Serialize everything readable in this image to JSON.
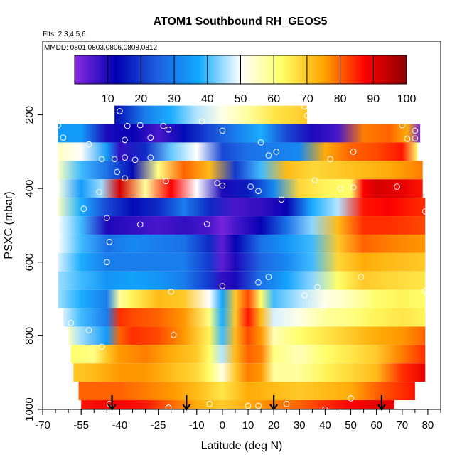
{
  "chart_data": {
    "type": "heatmap",
    "title": "ATOM1 Southbound RH_GEOS5",
    "subtitle": "Flts: 2,3,4,5,6",
    "annotation": "MMDD: 0801,0803,0806,0808,0812",
    "xlabel": "Latitude (deg N)",
    "ylabel": "PSXC (mbar)",
    "xlim": [
      -70,
      85
    ],
    "ylim": [
      1000,
      0
    ],
    "x_ticks": [
      -70,
      -55,
      -40,
      -25,
      -10,
      0,
      10,
      20,
      30,
      40,
      50,
      60,
      70,
      80
    ],
    "x_tick_labels": [
      "-70",
      "-55",
      "-40",
      "-25",
      "-10",
      "0",
      "10",
      "20",
      "30",
      "40",
      "50",
      "60",
      "70",
      "80"
    ],
    "y_ticks": [
      200,
      400,
      600,
      800,
      1000
    ],
    "y_tick_labels": [
      "200",
      "400",
      "600",
      "800",
      "1000"
    ],
    "colorbar": {
      "range": [
        0,
        100
      ],
      "ticks": [
        10,
        20,
        30,
        40,
        50,
        60,
        70,
        80,
        90,
        100
      ],
      "tick_labels": [
        "10",
        "20",
        "30",
        "40",
        "50",
        "60",
        "70",
        "80",
        "90",
        "100"
      ],
      "stops": [
        "#8a2be2",
        "#0000b0",
        "#1f5fe0",
        "#10aaff",
        "#ffffff",
        "#ffff66",
        "#ffa500",
        "#ff0000",
        "#8b0000"
      ]
    },
    "band_edges": [
      175,
      225,
      275,
      325,
      375,
      425,
      475,
      525,
      575,
      625,
      675,
      725,
      775,
      825,
      875,
      925,
      975,
      1000
    ],
    "bands": [
      {
        "p": 200,
        "x0": -42,
        "x1": 33,
        "lat": [
          -42,
          -30,
          -20,
          -10,
          0,
          10,
          20,
          33
        ],
        "rh": [
          14,
          30,
          38,
          46,
          52,
          58,
          66,
          70
        ]
      },
      {
        "p": 250,
        "x0": -64,
        "x1": 77,
        "lat": [
          -64,
          -55,
          -45,
          -35,
          -25,
          -15,
          -5,
          5,
          15,
          25,
          35,
          45,
          55,
          65,
          72,
          77
        ],
        "rh": [
          35,
          35,
          10,
          12,
          6,
          14,
          22,
          30,
          38,
          22,
          10,
          6,
          78,
          80,
          74,
          2
        ]
      },
      {
        "p": 300,
        "x0": -64,
        "x1": 76,
        "lat": [
          -64,
          -55,
          -45,
          -40,
          -30,
          -20,
          -10,
          0,
          10,
          20,
          30,
          40,
          50,
          60,
          70,
          76
        ],
        "rh": [
          55,
          50,
          35,
          8,
          18,
          42,
          50,
          22,
          28,
          30,
          32,
          74,
          80,
          82,
          86,
          62
        ]
      },
      {
        "p": 350,
        "x0": -64,
        "x1": 78,
        "lat": [
          -64,
          -55,
          -45,
          -35,
          -25,
          -15,
          -5,
          5,
          15,
          25,
          35,
          45,
          55,
          65,
          78
        ],
        "rh": [
          55,
          40,
          28,
          14,
          60,
          80,
          72,
          20,
          40,
          72,
          68,
          70,
          72,
          74,
          78
        ]
      },
      {
        "p": 400,
        "x0": -64,
        "x1": 78,
        "lat": [
          -64,
          -55,
          -47,
          -40,
          -30,
          -20,
          -10,
          0,
          10,
          20,
          30,
          40,
          50,
          55,
          60,
          70,
          78
        ],
        "rh": [
          52,
          35,
          45,
          92,
          58,
          88,
          50,
          10,
          16,
          32,
          68,
          64,
          62,
          88,
          92,
          90,
          86
        ]
      },
      {
        "p": 450,
        "x0": -64,
        "x1": 79,
        "lat": [
          -64,
          -55,
          -45,
          -35,
          -25,
          -15,
          -5,
          5,
          15,
          25,
          35,
          45,
          55,
          65,
          79
        ],
        "rh": [
          55,
          38,
          22,
          14,
          18,
          30,
          18,
          6,
          8,
          12,
          38,
          46,
          86,
          88,
          84
        ]
      },
      {
        "p": 500,
        "x0": -64,
        "x1": 79,
        "lat": [
          -64,
          -55,
          -45,
          -35,
          -25,
          -15,
          -5,
          0,
          5,
          15,
          25,
          35,
          45,
          55,
          65,
          79
        ],
        "rh": [
          50,
          40,
          10,
          8,
          6,
          8,
          6,
          2,
          6,
          12,
          28,
          44,
          72,
          84,
          84,
          82
        ]
      },
      {
        "p": 550,
        "x0": -64,
        "x1": 79,
        "lat": [
          -64,
          -55,
          -45,
          -35,
          -25,
          -15,
          -5,
          0,
          5,
          15,
          25,
          35,
          45,
          55,
          65,
          79
        ],
        "rh": [
          50,
          40,
          28,
          32,
          30,
          28,
          18,
          4,
          12,
          28,
          34,
          40,
          70,
          80,
          78,
          76
        ]
      },
      {
        "p": 600,
        "x0": -64,
        "x1": 79,
        "lat": [
          -64,
          -55,
          -45,
          -35,
          -25,
          -15,
          -5,
          0,
          5,
          15,
          25,
          35,
          45,
          55,
          65,
          79
        ],
        "rh": [
          48,
          38,
          30,
          30,
          30,
          30,
          20,
          4,
          10,
          26,
          32,
          40,
          68,
          74,
          72,
          70
        ]
      },
      {
        "p": 650,
        "x0": -64,
        "x1": 79,
        "lat": [
          -64,
          -55,
          -45,
          -35,
          -25,
          -15,
          -5,
          0,
          5,
          15,
          25,
          35,
          45,
          55,
          65,
          79
        ],
        "rh": [
          45,
          40,
          34,
          36,
          34,
          30,
          20,
          8,
          10,
          28,
          36,
          44,
          62,
          70,
          68,
          66
        ]
      },
      {
        "p": 700,
        "x0": -64,
        "x1": 79,
        "lat": [
          -64,
          -55,
          -45,
          -40,
          -35,
          -25,
          -15,
          -5,
          0,
          5,
          10,
          15,
          20,
          30,
          40,
          50,
          60,
          70,
          79
        ],
        "rh": [
          45,
          38,
          30,
          58,
          64,
          72,
          70,
          50,
          36,
          70,
          82,
          62,
          40,
          46,
          52,
          56,
          62,
          64,
          62
        ]
      },
      {
        "p": 750,
        "x0": -62,
        "x1": 79,
        "lat": [
          -62,
          -55,
          -45,
          -40,
          -35,
          -25,
          -15,
          -5,
          0,
          5,
          10,
          15,
          20,
          30,
          40,
          50,
          60,
          70,
          79
        ],
        "rh": [
          48,
          40,
          30,
          84,
          82,
          80,
          76,
          60,
          38,
          70,
          86,
          72,
          48,
          52,
          58,
          60,
          64,
          66,
          64
        ]
      },
      {
        "p": 800,
        "x0": -60,
        "x1": 79,
        "lat": [
          -60,
          -55,
          -45,
          -40,
          -35,
          -25,
          -15,
          -5,
          0,
          5,
          10,
          15,
          20,
          30,
          40,
          50,
          60,
          70,
          79
        ],
        "rh": [
          55,
          45,
          35,
          80,
          84,
          82,
          76,
          64,
          40,
          72,
          82,
          76,
          56,
          62,
          66,
          70,
          74,
          76,
          80
        ]
      },
      {
        "p": 850,
        "x0": -59,
        "x1": 79,
        "lat": [
          -59,
          -50,
          -45,
          -40,
          -30,
          -20,
          -10,
          -5,
          0,
          5,
          10,
          15,
          20,
          30,
          40,
          50,
          60,
          70,
          79
        ],
        "rh": [
          62,
          60,
          70,
          76,
          78,
          74,
          70,
          62,
          46,
          72,
          80,
          78,
          60,
          56,
          62,
          66,
          70,
          78,
          84
        ]
      },
      {
        "p": 900,
        "x0": -58,
        "x1": 79,
        "lat": [
          -58,
          -50,
          -40,
          -30,
          -20,
          -10,
          -5,
          0,
          5,
          10,
          15,
          20,
          30,
          40,
          50,
          60,
          70,
          79
        ],
        "rh": [
          70,
          72,
          76,
          76,
          72,
          68,
          62,
          52,
          70,
          78,
          76,
          58,
          58,
          64,
          68,
          72,
          84,
          90
        ]
      },
      {
        "p": 950,
        "x0": -56,
        "x1": 75,
        "lat": [
          -56,
          -50,
          -40,
          -30,
          -20,
          -10,
          0,
          10,
          20,
          30,
          40,
          50,
          60,
          70,
          75
        ],
        "rh": [
          80,
          80,
          80,
          78,
          76,
          72,
          66,
          74,
          72,
          70,
          72,
          74,
          80,
          84,
          86
        ]
      },
      {
        "p": 1000,
        "x0": -55,
        "x1": 67,
        "lat": [
          -55,
          -45,
          -40,
          -30,
          -20,
          -10,
          0,
          10,
          20,
          30,
          40,
          50,
          60,
          67
        ],
        "rh": [
          86,
          88,
          88,
          86,
          80,
          74,
          70,
          74,
          78,
          80,
          84,
          88,
          90,
          90
        ]
      }
    ],
    "observations": [
      {
        "x": -40,
        "p": 190
      },
      {
        "x": 32,
        "p": 177
      },
      {
        "x": 33,
        "p": 202
      },
      {
        "x": -64,
        "p": 228
      },
      {
        "x": -37,
        "p": 230
      },
      {
        "x": -32,
        "p": 228
      },
      {
        "x": -23,
        "p": 230
      },
      {
        "x": -21,
        "p": 240
      },
      {
        "x": -8,
        "p": 218
      },
      {
        "x": 0,
        "p": 243
      },
      {
        "x": 70,
        "p": 228
      },
      {
        "x": 75,
        "p": 243
      },
      {
        "x": -62,
        "p": 262
      },
      {
        "x": -28,
        "p": 262
      },
      {
        "x": -38,
        "p": 268
      },
      {
        "x": 72,
        "p": 265
      },
      {
        "x": 75,
        "p": 264
      },
      {
        "x": 15,
        "p": 275
      },
      {
        "x": -52,
        "p": 280
      },
      {
        "x": 18,
        "p": 310
      },
      {
        "x": 21,
        "p": 300
      },
      {
        "x": 51,
        "p": 300
      },
      {
        "x": -47,
        "p": 320
      },
      {
        "x": -42,
        "p": 320
      },
      {
        "x": -38,
        "p": 316
      },
      {
        "x": -34,
        "p": 322
      },
      {
        "x": -28,
        "p": 316
      },
      {
        "x": 42,
        "p": 320
      },
      {
        "x": -41,
        "p": 355
      },
      {
        "x": -38,
        "p": 372
      },
      {
        "x": -22,
        "p": 380
      },
      {
        "x": -2,
        "p": 385
      },
      {
        "x": 0,
        "p": 392
      },
      {
        "x": 36,
        "p": 378
      },
      {
        "x": 46,
        "p": 400
      },
      {
        "x": 51,
        "p": 397
      },
      {
        "x": 68,
        "p": 395
      },
      {
        "x": -48,
        "p": 410
      },
      {
        "x": 11,
        "p": 395
      },
      {
        "x": 14,
        "p": 407
      },
      {
        "x": 23,
        "p": 430
      },
      {
        "x": -54,
        "p": 455
      },
      {
        "x": -45,
        "p": 480
      },
      {
        "x": -32,
        "p": 498
      },
      {
        "x": -6,
        "p": 497
      },
      {
        "x": 79,
        "p": 462
      },
      {
        "x": -44,
        "p": 545
      },
      {
        "x": -45,
        "p": 600
      },
      {
        "x": 0,
        "p": 665
      },
      {
        "x": -20,
        "p": 680
      },
      {
        "x": 14,
        "p": 655
      },
      {
        "x": 18,
        "p": 640
      },
      {
        "x": 37,
        "p": 668
      },
      {
        "x": 54,
        "p": 640
      },
      {
        "x": 79,
        "p": 678
      },
      {
        "x": 32,
        "p": 690
      },
      {
        "x": 39,
        "p": 723
      },
      {
        "x": -59,
        "p": 765
      },
      {
        "x": -52,
        "p": 785
      },
      {
        "x": -47,
        "p": 830
      },
      {
        "x": -19,
        "p": 798
      },
      {
        "x": -44,
        "p": 985
      },
      {
        "x": -21,
        "p": 995
      },
      {
        "x": -5,
        "p": 985
      },
      {
        "x": 10,
        "p": 990
      },
      {
        "x": 14,
        "p": 990
      },
      {
        "x": 25,
        "p": 985
      },
      {
        "x": 40,
        "p": 1000
      },
      {
        "x": 50,
        "p": 970
      }
    ],
    "arrows": [
      -43,
      -14,
      20,
      62
    ]
  }
}
